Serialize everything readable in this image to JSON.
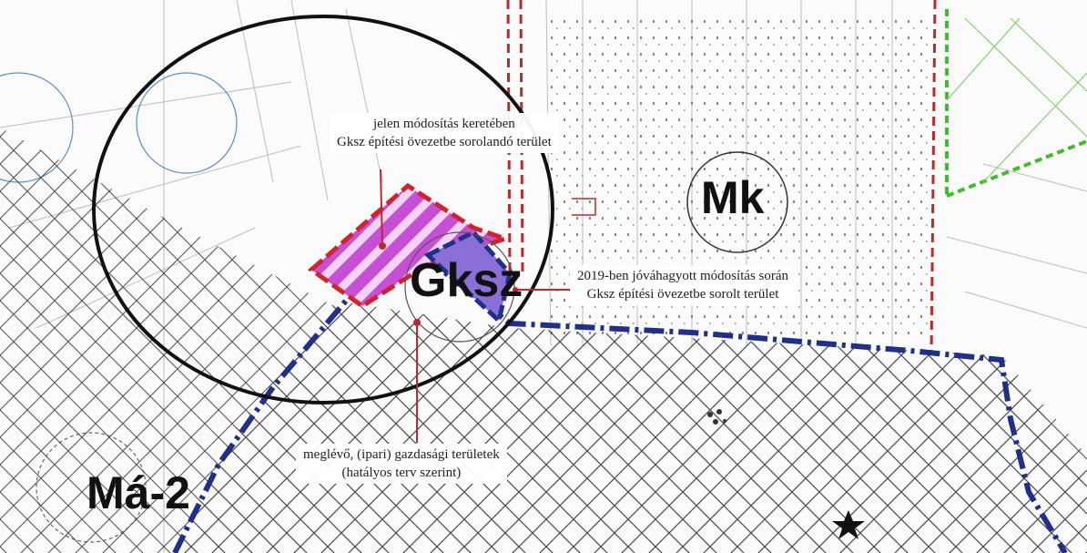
{
  "map": {
    "colors": {
      "background": "#fbfbfb",
      "grid_hatch": "#4a4a4a",
      "admin_boundary_blue": "#1f2f8a",
      "red_dashed_line": "#c0282d",
      "green_dashed_line": "#3cbf2a",
      "new_area_fill": "#c64fd6",
      "new_area_stripe": "#f3d3f5",
      "new_area_border": "#d2232a",
      "circle_outline": "#111111",
      "blue_label_text": "#2e6fc0"
    },
    "zones": {
      "mk": "Mk",
      "gksz": "Gksz",
      "ma2": "Má-2"
    },
    "callouts": {
      "new_area": {
        "line1": "jelen módosítás keretében",
        "line2": "Gksz építési övezetbe sorolandó terület"
      },
      "approved_2019": {
        "line1": "2019-ben jóváhagyott módosítás során",
        "line2": "Gksz építési övezetbe sorolt terület"
      },
      "existing_industrial": {
        "line1": "meglévő, (ipari) gazdasági területek",
        "line2": "(hatályos terv szerint)"
      }
    },
    "icons": {
      "north_marker": "star-marker-icon",
      "pond_marker": "dotted-symbol-icon"
    }
  }
}
